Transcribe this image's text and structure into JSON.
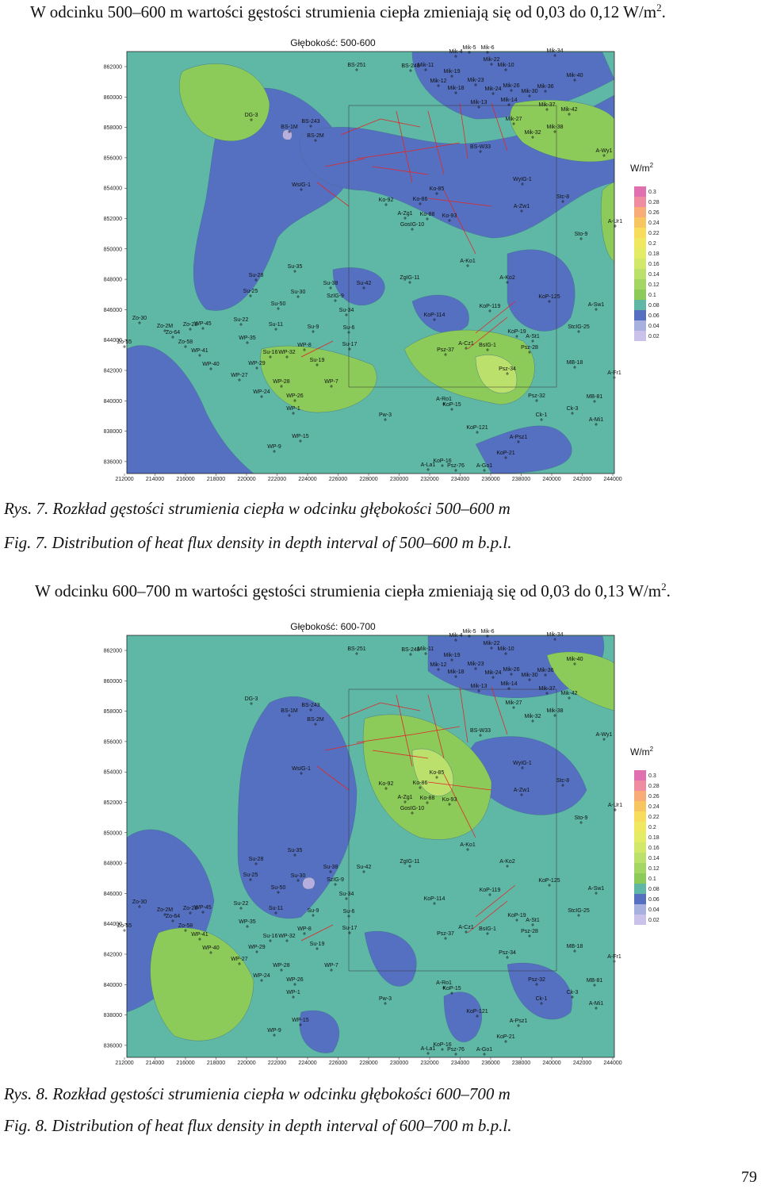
{
  "page_number": "79",
  "sections": [
    {
      "intro": {
        "text": "W odcinku 500–600 m wartości gęstości strumienia ciepła zmieniają się od 0,03 do 0,12 W/m",
        "sup": "2",
        "end": "."
      },
      "map": {
        "title": "Głębokość: 500-600",
        "unit": "W/m",
        "unit_sup": "2",
        "legend": [
          "0.3",
          "0.28",
          "0.26",
          "0.24",
          "0.22",
          "0.2",
          "0.18",
          "0.16",
          "0.14",
          "0.12",
          "0.1",
          "0.08",
          "0.06",
          "0.04",
          "0.02"
        ],
        "yticks": [
          "862000",
          "860000",
          "858000",
          "856000",
          "854000",
          "852000",
          "850000",
          "848000",
          "846000",
          "844000",
          "842000",
          "840000",
          "838000",
          "836000"
        ],
        "xticks": [
          "212000",
          "214000",
          "216000",
          "218000",
          "220000",
          "222000",
          "224000",
          "226000",
          "228000",
          "230000",
          "232000",
          "234000",
          "236000",
          "238000",
          "240000",
          "242000",
          "244000"
        ],
        "wells": [
          "BS-251",
          "Mik-4",
          "Mik-5",
          "Mik-6",
          "Mik-34",
          "Mik-22",
          "Mik-10",
          "BS-248",
          "Mik-11",
          "Mik-19",
          "Mik-40",
          "Mik-12",
          "Mik-23",
          "Mik-26",
          "Mik-36",
          "Mik-18",
          "Mik-24",
          "Mik-30",
          "Mik-13",
          "Mik-14",
          "Mik-37",
          "Mik-42",
          "DG-3",
          "BS-243",
          "BS-1M",
          "BS-2M",
          "Mik-27",
          "Mik-32",
          "Mik-38",
          "BS-W33",
          "A-Wy1",
          "WyIG-1",
          "WsIG-1",
          "Ko-85",
          "Ko-92",
          "Ko-86",
          "Stc-8",
          "A-Zw1",
          "A-Zg1",
          "Ko-88",
          "Ko-93",
          "GosIG-10",
          "A-Ur1",
          "Sto-9",
          "A-Ko1",
          "Su-35",
          "Su-28",
          "ZgIG-11",
          "A-Ko2",
          "Su-38",
          "Su-42",
          "Su-25",
          "Su-30",
          "SzIG-9",
          "KoP-125",
          "Su-50",
          "KoP-119",
          "A-Sw1",
          "Su-34",
          "KoP-114",
          "Zo-30",
          "Su-22",
          "Zo-2M",
          "Zo-28",
          "WP-45",
          "Su-11",
          "Su-9",
          "Su-6",
          "StcIG-25",
          "Zo-64",
          "KoP-19",
          "A-St1",
          "Zo-55",
          "WP-35",
          "Zo-58",
          "Su-17",
          "A-Cz1",
          "BsIG-1",
          "Psz-28",
          "WP-41",
          "Su-16",
          "WP-32",
          "WP-8",
          "Psz-37",
          "Su-19",
          "MB-18",
          "WP-40",
          "WP-29",
          "Psz-34",
          "A-Fr1",
          "WP-27",
          "WP-28",
          "WP-7",
          "WP-24",
          "WP-26",
          "Psz-32",
          "MB-81",
          "A-Ro1",
          "KoP-15",
          "Ck-3",
          "WP-1",
          "Ck-1",
          "Pw-3",
          "A-Mi1",
          "KoP-121",
          "WP-15",
          "A-Psz1",
          "WP-9",
          "KoP-21",
          "KoP-16",
          "A-La1",
          "Psz-76",
          "A-Go1"
        ]
      },
      "caption_pl": "Rys. 7. Rozkład gęstości strumienia ciepła w odcinku głębokości 500–600 m",
      "caption_en": "Fig. 7. Distribution of heat flux density in depth interval of 500–600 m b.p.l."
    },
    {
      "intro": {
        "text": "W odcinku 600–700 m wartości gęstości strumienia ciepła zmieniają się od 0,03 do 0,13 W/m",
        "sup": "2",
        "end": "."
      },
      "map": {
        "title": "Głębokość: 600-700",
        "unit": "W/m",
        "unit_sup": "2",
        "legend": [
          "0.3",
          "0.28",
          "0.26",
          "0.24",
          "0.22",
          "0.2",
          "0.18",
          "0.16",
          "0.14",
          "0.12",
          "0.1",
          "0.08",
          "0.06",
          "0.04",
          "0.02"
        ],
        "yticks": [
          "862000",
          "860000",
          "858000",
          "856000",
          "854000",
          "852000",
          "850000",
          "848000",
          "846000",
          "844000",
          "842000",
          "840000",
          "838000",
          "836000"
        ],
        "xticks": [
          "212000",
          "214000",
          "216000",
          "218000",
          "220000",
          "222000",
          "224000",
          "226000",
          "228000",
          "230000",
          "232000",
          "234000",
          "236000",
          "238000",
          "240000",
          "242000",
          "244000"
        ],
        "wells": [
          "BS-251",
          "Mik-4",
          "Mik-5",
          "Mik-6",
          "Mik-34",
          "Mik-22",
          "Mik-10",
          "BS-248",
          "Mik-11",
          "Mik-19",
          "Mik-40",
          "Mik-12",
          "Mik-23",
          "Mik-26",
          "Mik-36",
          "Mik-18",
          "Mik-24",
          "Mik-30",
          "Mik-13",
          "Mik-14",
          "Mik-37",
          "Mik-42",
          "DG-3",
          "BS-243",
          "BS-1M",
          "BS-2M",
          "Mik-27",
          "Mik-32",
          "Mik-38",
          "BS-W33",
          "A-Wy1",
          "WyIG-1",
          "WsIG-1",
          "Ko-85",
          "Ko-92",
          "Ko-86",
          "Stc-8",
          "A-Zw1",
          "A-Zg1",
          "Ko-88",
          "Ko-93",
          "GosIG-10",
          "A-Ur1",
          "Sto-9",
          "A-Ko1",
          "Su-35",
          "Su-28",
          "ZgIG-11",
          "A-Ko2",
          "Su-38",
          "Su-42",
          "Su-25",
          "Su-30",
          "SzIG-9",
          "KoP-125",
          "Su-50",
          "KoP-119",
          "A-Sw1",
          "Su-34",
          "KoP-114",
          "Zo-30",
          "Su-22",
          "Zo-2M",
          "Zo-28",
          "WP-45",
          "Su-11",
          "Su-9",
          "Su-6",
          "StcIG-25",
          "Zo-64",
          "KoP-19",
          "A-St1",
          "Zo-55",
          "WP-35",
          "Zo-58",
          "Su-17",
          "A-Cz1",
          "BsIG-1",
          "Psz-28",
          "WP-41",
          "Su-16",
          "WP-32",
          "WP-8",
          "Psz-37",
          "Su-19",
          "MB-18",
          "WP-40",
          "WP-29",
          "Psz-34",
          "A-Fr1",
          "WP-27",
          "WP-28",
          "WP-7",
          "WP-24",
          "WP-26",
          "Psz-32",
          "MB-81",
          "A-Ro1",
          "KoP-15",
          "Ck-3",
          "WP-1",
          "Ck-1",
          "Pw-3",
          "A-Mi1",
          "KoP-121",
          "WP-15",
          "A-Psz1",
          "WP-9",
          "KoP-21",
          "KoP-16",
          "A-La1",
          "Psz-76",
          "A-Go1"
        ]
      },
      "caption_pl": "Rys. 8. Rozkład gęstości strumienia ciepła w odcinku głębokości 600–700 m",
      "caption_en": "Fig. 8. Distribution of heat flux density in depth interval of 600–700 m b.p.l."
    }
  ]
}
